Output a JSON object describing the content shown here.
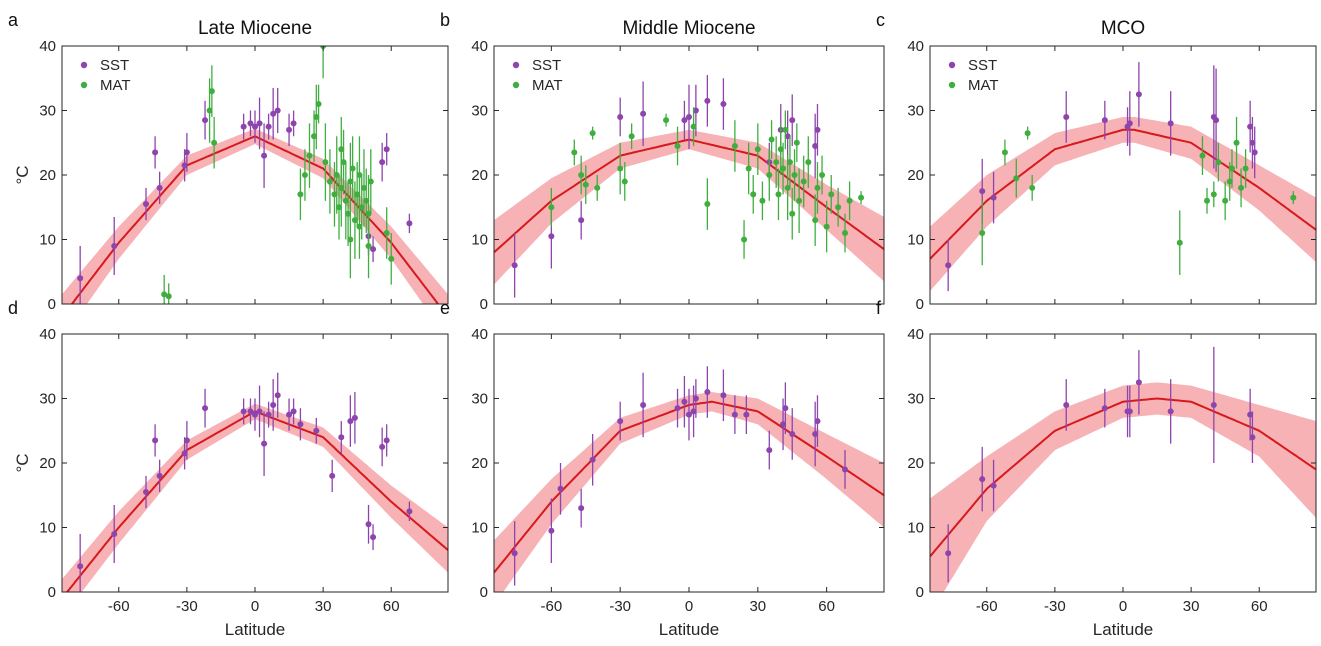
{
  "colors": {
    "sst": "#8e44ad",
    "mat": "#3fae3f",
    "fit": "#d7191c",
    "band": "#f4a5a8",
    "axis": "#262626"
  },
  "chart_data": [
    {
      "type": "scatter",
      "letter": "a",
      "title": "Late Miocene",
      "ylabel": "°C",
      "xlabel": "",
      "xlim": [
        -85,
        85
      ],
      "ylim": [
        0,
        40
      ],
      "xticks": [],
      "yticks": [
        0,
        10,
        20,
        30,
        40
      ],
      "legend": {
        "placement": "top-left",
        "entries": [
          "SST",
          "MAT"
        ]
      },
      "fit": {
        "x": [
          -85,
          -60,
          -30,
          0,
          30,
          60,
          85
        ],
        "y": [
          -2,
          9.5,
          21.5,
          26,
          21,
          9.5,
          -2
        ],
        "band": [
          3.5,
          2.5,
          1.5,
          1.2,
          1.5,
          2.5,
          3.5
        ]
      },
      "series": [
        {
          "name": "SST",
          "x": [
            -77,
            -62,
            -48,
            -44,
            -42,
            -31,
            -30,
            -22,
            -5,
            -2,
            0,
            2,
            4,
            6,
            8,
            10,
            15,
            17,
            50,
            52,
            56,
            58,
            68
          ],
          "y": [
            4,
            9,
            15.5,
            23.5,
            18,
            21.5,
            23.5,
            28.5,
            27.5,
            28,
            27.5,
            28,
            23,
            27.5,
            29.5,
            30,
            27,
            28,
            10.5,
            8.5,
            22,
            24,
            12.5
          ],
          "err": [
            5,
            4.5,
            2.5,
            2.5,
            2.5,
            2.5,
            3,
            3,
            2,
            2,
            2.5,
            4,
            5,
            2,
            4,
            3.5,
            2.5,
            2,
            3,
            2,
            3,
            2.5,
            1.5
          ]
        },
        {
          "name": "MAT",
          "x": [
            -40,
            -38,
            -20,
            -19,
            -18,
            20,
            22,
            24,
            26,
            27,
            28,
            30,
            31,
            33,
            35,
            36,
            37,
            38,
            39,
            40,
            41,
            42,
            43,
            44,
            45,
            46,
            47,
            48,
            49,
            50,
            51,
            38,
            42,
            46,
            50,
            58,
            60
          ],
          "y": [
            1.5,
            1.2,
            30,
            33,
            25,
            17,
            20,
            23,
            26,
            29,
            31,
            40,
            22,
            19,
            17,
            20,
            15,
            18,
            22,
            16,
            14,
            19,
            21,
            13,
            17,
            20,
            15,
            18,
            16,
            14,
            19,
            24,
            10,
            12,
            9,
            11,
            7
          ],
          "err": [
            3,
            2,
            5,
            4,
            4,
            4,
            4,
            5,
            4,
            5,
            3,
            5,
            6,
            5,
            5,
            6,
            5,
            6,
            5,
            6,
            5,
            6,
            5,
            6,
            5,
            6,
            5,
            6,
            5,
            6,
            5,
            5,
            6,
            5,
            5,
            4,
            4
          ]
        }
      ]
    },
    {
      "type": "scatter",
      "letter": "b",
      "title": "Middle Miocene",
      "ylabel": "",
      "xlabel": "",
      "xlim": [
        -85,
        85
      ],
      "ylim": [
        0,
        40
      ],
      "xticks": [],
      "yticks": [
        0,
        10,
        20,
        30,
        40
      ],
      "legend": {
        "placement": "top-left",
        "entries": [
          "SST",
          "MAT"
        ]
      },
      "fit": {
        "x": [
          -85,
          -60,
          -30,
          0,
          30,
          60,
          85
        ],
        "y": [
          8,
          16,
          23,
          25.5,
          23,
          15,
          8.5
        ],
        "band": [
          5,
          3.5,
          2,
          1.5,
          2,
          3.5,
          5
        ]
      },
      "series": [
        {
          "name": "SST",
          "x": [
            -76,
            -60,
            -47,
            -30,
            -20,
            -2,
            0,
            3,
            8,
            15,
            35,
            40,
            43,
            45,
            55,
            56
          ],
          "y": [
            6,
            10.5,
            13,
            29,
            29.5,
            28.5,
            29,
            30,
            31.5,
            31,
            22,
            27,
            26,
            28.5,
            24.5,
            27
          ],
          "err": [
            5,
            5,
            3,
            3,
            5,
            3,
            5,
            4,
            4,
            4,
            3,
            4,
            4,
            4,
            5,
            4
          ]
        },
        {
          "name": "MAT",
          "x": [
            -60,
            -50,
            -47,
            -45,
            -42,
            -40,
            -30,
            -28,
            -25,
            -10,
            -5,
            2,
            8,
            20,
            24,
            26,
            28,
            30,
            32,
            35,
            36,
            38,
            39,
            40,
            41,
            42,
            43,
            44,
            45,
            46,
            47,
            48,
            50,
            52,
            55,
            56,
            58,
            60,
            62,
            65,
            68,
            70,
            75
          ],
          "y": [
            15,
            23.5,
            20,
            18.5,
            26.5,
            18,
            21,
            19,
            26,
            28.5,
            24.5,
            27.5,
            15.5,
            24.5,
            10,
            21,
            17,
            24,
            16,
            20,
            25.5,
            22,
            17,
            24,
            21,
            27,
            18,
            22,
            14,
            20,
            25,
            16,
            19,
            22,
            13,
            18,
            20,
            12,
            17,
            15,
            11,
            16,
            16.5
          ],
          "err": [
            3,
            2,
            3,
            3,
            1,
            2,
            4,
            3,
            2,
            1,
            3,
            3,
            4,
            4,
            3,
            4,
            3,
            4,
            3,
            4,
            3,
            4,
            4,
            4,
            4,
            3,
            5,
            4,
            4,
            4,
            3,
            5,
            4,
            4,
            4,
            4,
            3,
            4,
            3,
            3,
            3,
            3,
            1
          ]
        }
      ]
    },
    {
      "type": "scatter",
      "letter": "c",
      "title": "MCO",
      "ylabel": "",
      "xlabel": "",
      "xlim": [
        -85,
        85
      ],
      "ylim": [
        0,
        40
      ],
      "xticks": [],
      "yticks": [
        0,
        10,
        20,
        30,
        40
      ],
      "legend": {
        "placement": "top-left",
        "entries": [
          "SST",
          "MAT"
        ]
      },
      "fit": {
        "x": [
          -85,
          -60,
          -30,
          0,
          5,
          30,
          60,
          85
        ],
        "y": [
          7,
          16,
          24,
          27,
          27,
          25,
          18,
          11.5
        ],
        "band": [
          5,
          4,
          2.5,
          2,
          2,
          2.5,
          3.5,
          5
        ]
      },
      "series": [
        {
          "name": "SST",
          "x": [
            -77,
            -62,
            -57,
            -25,
            -8,
            2,
            3,
            7,
            21,
            40,
            41,
            56,
            57,
            58
          ],
          "y": [
            6,
            17.5,
            16.5,
            29,
            28.5,
            27.5,
            28,
            32.5,
            28,
            29,
            28.5,
            27.5,
            25,
            23.5
          ],
          "err": [
            4,
            5,
            4,
            4,
            3,
            3,
            5,
            5,
            5,
            8,
            8,
            4,
            4,
            4
          ]
        },
        {
          "name": "MAT",
          "x": [
            -62,
            -52,
            -47,
            -42,
            -40,
            25,
            35,
            37,
            40,
            42,
            45,
            47,
            48,
            50,
            52,
            54,
            75
          ],
          "y": [
            11,
            23.5,
            19.5,
            26.5,
            18,
            9.5,
            23,
            16,
            17,
            22,
            16,
            19,
            21,
            25,
            18,
            21,
            16.5
          ],
          "err": [
            5,
            2,
            3,
            1,
            2,
            5,
            3,
            2,
            2,
            3,
            3,
            3,
            3,
            4,
            3,
            3,
            1
          ]
        }
      ]
    },
    {
      "type": "scatter",
      "letter": "d",
      "title": "",
      "ylabel": "°C",
      "xlabel": "Latitude",
      "xlim": [
        -85,
        85
      ],
      "ylim": [
        0,
        40
      ],
      "xticks": [
        -60,
        -30,
        0,
        30,
        60
      ],
      "yticks": [
        0,
        10,
        20,
        30,
        40
      ],
      "legend": null,
      "fit": {
        "x": [
          -85,
          -60,
          -30,
          0,
          30,
          60,
          85
        ],
        "y": [
          -1,
          10,
          22,
          28,
          24,
          14,
          6.5
        ],
        "band": [
          3,
          2.5,
          1.5,
          1.2,
          1.5,
          2.5,
          3.5
        ]
      },
      "series": [
        {
          "name": "SST",
          "x": [
            -77,
            -62,
            -48,
            -44,
            -42,
            -31,
            -30,
            -22,
            -5,
            -2,
            0,
            2,
            4,
            6,
            8,
            10,
            15,
            17,
            20,
            27,
            34,
            38,
            42,
            44,
            50,
            52,
            56,
            58,
            68
          ],
          "y": [
            4,
            9,
            15.5,
            23.5,
            18,
            21.5,
            23.5,
            28.5,
            28,
            28,
            27.5,
            28,
            23,
            27.5,
            29,
            30.5,
            27.5,
            28,
            26,
            25,
            18,
            24,
            26.5,
            27,
            10.5,
            8.5,
            22.5,
            23.5,
            12.5
          ],
          "err": [
            5,
            4.5,
            2.5,
            2.5,
            2.5,
            2.5,
            3,
            3,
            2,
            2,
            2.5,
            4,
            5,
            2,
            4,
            3.5,
            2.5,
            2,
            2.5,
            2,
            2.5,
            2.5,
            4,
            4,
            3,
            2,
            3,
            2.5,
            1.5
          ]
        }
      ]
    },
    {
      "type": "scatter",
      "letter": "e",
      "title": "",
      "ylabel": "",
      "xlabel": "Latitude",
      "xlim": [
        -85,
        85
      ],
      "ylim": [
        0,
        40
      ],
      "xticks": [
        -60,
        -30,
        0,
        30,
        60
      ],
      "yticks": [
        0,
        10,
        20,
        30,
        40
      ],
      "legend": null,
      "fit": {
        "x": [
          -85,
          -60,
          -30,
          0,
          10,
          30,
          60,
          85
        ],
        "y": [
          3,
          14,
          25,
          29,
          29.5,
          28,
          21,
          15
        ],
        "band": [
          5,
          3.5,
          2,
          1.5,
          1.5,
          2,
          3.5,
          5
        ]
      },
      "series": [
        {
          "name": "SST",
          "x": [
            -76,
            -60,
            -56,
            -47,
            -42,
            -30,
            -20,
            -5,
            -2,
            0,
            2,
            3,
            8,
            15,
            20,
            25,
            35,
            41,
            42,
            45,
            55,
            56,
            68
          ],
          "y": [
            6,
            9.5,
            16,
            13,
            20.5,
            26.5,
            29,
            28.5,
            29.5,
            27.5,
            28,
            30,
            31,
            30.5,
            27.5,
            27.5,
            22,
            26,
            28.5,
            24.5,
            24.5,
            26.5,
            19
          ],
          "err": [
            5,
            5,
            4,
            3,
            4,
            3,
            5,
            3,
            4,
            4,
            4,
            3,
            4,
            4,
            3,
            3,
            3,
            4,
            4,
            4,
            5,
            4,
            3
          ]
        }
      ]
    },
    {
      "type": "scatter",
      "letter": "f",
      "title": "",
      "ylabel": "",
      "xlabel": "Latitude",
      "xlim": [
        -85,
        85
      ],
      "ylim": [
        0,
        40
      ],
      "xticks": [
        -60,
        -30,
        0,
        30,
        60
      ],
      "yticks": [
        0,
        10,
        20,
        30,
        40
      ],
      "legend": null,
      "fit": {
        "x": [
          -85,
          -60,
          -30,
          0,
          15,
          30,
          60,
          85
        ],
        "y": [
          5.5,
          16,
          25,
          29.5,
          30,
          29.5,
          25,
          19
        ],
        "band": [
          9,
          5,
          3,
          2.5,
          2.5,
          2.5,
          4,
          7.5
        ]
      },
      "series": [
        {
          "name": "SST",
          "x": [
            -77,
            -62,
            -57,
            -25,
            -8,
            2,
            3,
            7,
            21,
            40,
            56,
            57
          ],
          "y": [
            6,
            17.5,
            16.5,
            29,
            28.5,
            28,
            28,
            32.5,
            28,
            29,
            27.5,
            24
          ],
          "err": [
            4.5,
            5,
            4,
            4,
            3,
            4,
            4,
            5,
            5,
            9,
            4,
            4
          ]
        }
      ]
    }
  ]
}
